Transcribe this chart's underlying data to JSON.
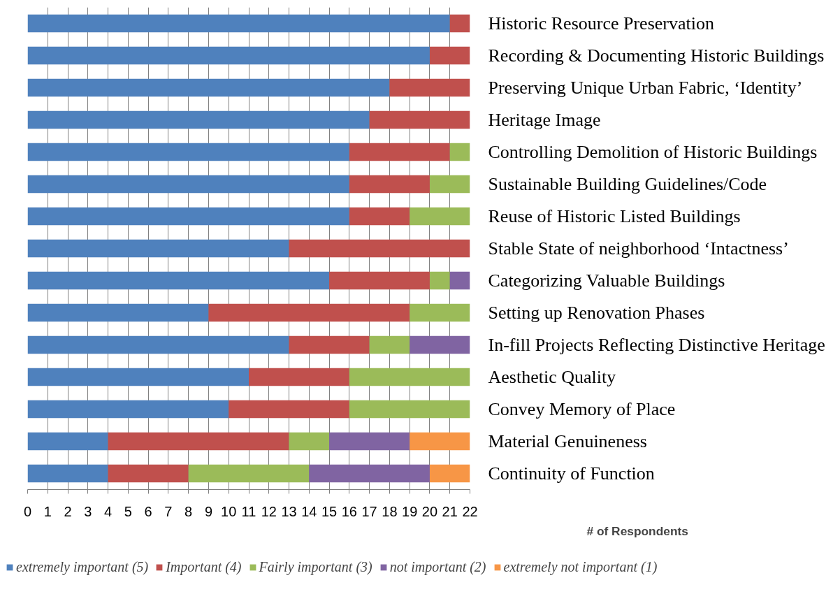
{
  "chart_data": {
    "type": "bar",
    "orientation": "horizontal",
    "stacked": true,
    "xlabel": "# of Respondents",
    "categories": [
      "Historic Resource Preservation",
      "Recording & Documenting Historic Buildings",
      "Preserving Unique Urban Fabric, ‘Identity’",
      "Heritage Image",
      "Controlling Demolition of Historic Buildings",
      "Sustainable Building Guidelines/Code",
      "Reuse of Historic Listed Buildings",
      "Stable State of neighborhood  ‘Intactness’",
      "Categorizing Valuable Buildings",
      "Setting up Renovation Phases",
      "In-fill Projects Reflecting Distinctive Heritage",
      "Aesthetic Quality",
      "Convey Memory of Place",
      "Material Genuineness",
      "Continuity of Function"
    ],
    "series": [
      {
        "name": "extremely important (5)",
        "color": "#4f81bd",
        "values": [
          21,
          20,
          18,
          17,
          16,
          16,
          16,
          13,
          15,
          9,
          13,
          11,
          10,
          4,
          4
        ]
      },
      {
        "name": "Important (4)",
        "color": "#c0504d",
        "values": [
          1,
          2,
          4,
          5,
          5,
          4,
          3,
          9,
          5,
          10,
          4,
          5,
          6,
          9,
          4
        ]
      },
      {
        "name": "Fairly important (3)",
        "color": "#9bbb59",
        "values": [
          0,
          0,
          0,
          0,
          1,
          2,
          3,
          0,
          1,
          3,
          2,
          6,
          6,
          2,
          6
        ]
      },
      {
        "name": "not important (2)",
        "color": "#8064a2",
        "values": [
          0,
          0,
          0,
          0,
          0,
          0,
          0,
          0,
          1,
          0,
          3,
          0,
          0,
          4,
          6
        ]
      },
      {
        "name": "extremely not important (1)",
        "color": "#f79646",
        "values": [
          0,
          0,
          0,
          0,
          0,
          0,
          0,
          0,
          0,
          0,
          0,
          0,
          0,
          3,
          2
        ]
      }
    ],
    "xlim": [
      0,
      22
    ],
    "xticks": [
      0,
      1,
      2,
      3,
      4,
      5,
      6,
      7,
      8,
      9,
      10,
      11,
      12,
      13,
      14,
      15,
      16,
      17,
      18,
      19,
      20,
      21,
      22
    ],
    "grid": "x",
    "legend": "bottom"
  }
}
